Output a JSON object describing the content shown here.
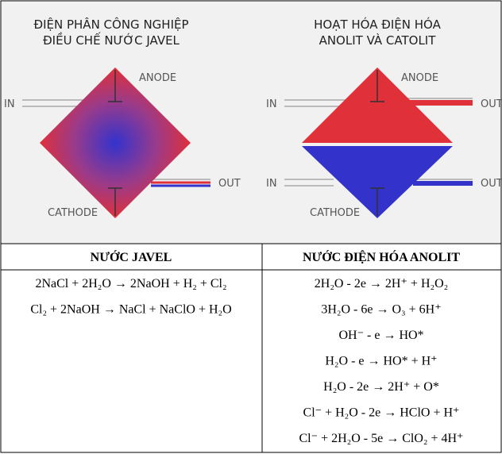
{
  "diagrams": [
    {
      "title": [
        "ĐIỆN PHÂN CÔNG NGHIỆP",
        "ĐIỀU CHẾ NƯỚC JAVEL"
      ],
      "in": "IN",
      "out": "OUT",
      "anode": "ANODE",
      "cathode": "CATHODE"
    },
    {
      "title": [
        "HOẠT HÓA ĐIỆN HÓA",
        "ANOLIT VÀ CATOLIT"
      ],
      "in": "IN",
      "out": "OUT",
      "anode": "ANODE",
      "cathode": "CATHODE"
    }
  ],
  "table": {
    "headers": [
      "NƯỚC JAVEL",
      "NƯỚC ĐIỆN HÓA ANOLIT"
    ],
    "columns": [
      [
        "2NaCl + 2H₂O → 2NaOH + H₂ + Cl₂",
        "Cl₂ + 2NaOH → NaCl + NaClO + H₂O"
      ],
      [
        "2H₂O - 2e → 2H⁺ +  H₂O₂",
        "3H₂O - 6e → O₃ + 6H⁺",
        "OH⁻ - e → HO*",
        "H₂O - e → HO* + H⁺",
        "H₂O - 2e → 2H⁺ + O*",
        "Cl⁻ + H₂O - 2e →  HClO + H⁺",
        "Cl⁻ + 2H₂O - 5e → ClO₂ + 4H⁺"
      ]
    ]
  }
}
